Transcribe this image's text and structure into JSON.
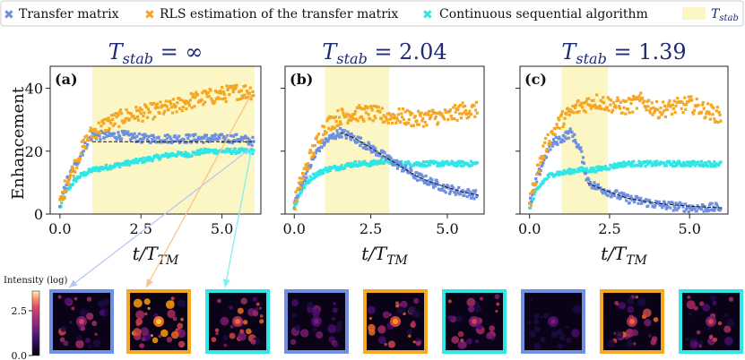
{
  "legend": {
    "items": [
      {
        "label": "Transfer matrix",
        "color": "#6f8fe0",
        "marker": "x-marker-icon"
      },
      {
        "label": "RLS estimation of the transfer matrix",
        "color": "#f5a623",
        "marker": "x-marker-icon"
      },
      {
        "label": "Continuous sequential algorithm",
        "color": "#2ee6e6",
        "marker": "x-marker-icon"
      },
      {
        "label": "T",
        "sub": "stab",
        "color": "#fbf6c4",
        "marker": "shaded-box-icon"
      }
    ]
  },
  "shared": {
    "ylabel": "Enhancement",
    "xlabel_main": "t/T",
    "xlabel_sub": "TM",
    "title_prefix": "T",
    "title_sub": "stab",
    "title_eq": "= ",
    "title_color": "#1d2b7a",
    "colorbar_label": "Intensity (log)",
    "colorbar_ticks": [
      {
        "value": 0.0,
        "label": "0.0"
      },
      {
        "value": 2.5,
        "label": "2.5"
      }
    ],
    "colorbar_range": [
      0.0,
      3.6
    ]
  },
  "chart_data": [
    {
      "type": "line",
      "panel_label": "(a)",
      "title_value": "∞",
      "xlim": [
        -0.3,
        6.2
      ],
      "ylim": [
        0,
        47
      ],
      "xticks": [
        0.0,
        2.5,
        5.0
      ],
      "xtick_labels": [
        "0.0",
        "2.5",
        "5.0"
      ],
      "yticks": [
        0,
        20,
        40
      ],
      "ytick_labels": [
        "0",
        "20",
        "40"
      ],
      "shade": [
        1.0,
        6.0
      ],
      "series": [
        {
          "key": "transfer",
          "x": [
            0.0,
            0.2,
            0.4,
            0.6,
            0.8,
            1.0,
            1.5,
            2.0,
            2.5,
            3.0,
            3.5,
            4.0,
            4.5,
            5.0,
            5.5,
            6.0
          ],
          "y": [
            3,
            10,
            14,
            18,
            22,
            25,
            25,
            25,
            24,
            24,
            24,
            24,
            24,
            24,
            24,
            23
          ]
        },
        {
          "key": "rls",
          "x": [
            0.0,
            0.2,
            0.4,
            0.6,
            0.8,
            1.0,
            1.5,
            2.0,
            2.5,
            3.0,
            3.5,
            4.0,
            4.5,
            5.0,
            5.5,
            6.0
          ],
          "y": [
            3,
            10,
            14,
            19,
            23,
            26,
            29,
            31,
            32,
            33,
            34,
            36,
            37,
            38,
            39,
            39
          ]
        },
        {
          "key": "continuous",
          "x": [
            0.0,
            0.2,
            0.4,
            0.6,
            0.8,
            1.0,
            1.5,
            2.0,
            2.5,
            3.0,
            3.5,
            4.0,
            4.5,
            5.0,
            5.5,
            6.0
          ],
          "y": [
            2,
            7,
            10,
            12,
            13,
            14,
            15,
            16,
            17,
            18,
            19,
            19,
            20,
            20,
            20,
            20
          ]
        },
        {
          "key": "fit",
          "x": [
            1.0,
            1.5,
            2.0,
            2.5,
            3.0,
            3.5,
            4.0,
            4.5,
            5.0,
            5.5,
            6.0
          ],
          "y": [
            23,
            23,
            23,
            23,
            23,
            23,
            23,
            23,
            23,
            23,
            23
          ]
        }
      ]
    },
    {
      "type": "line",
      "panel_label": "(b)",
      "title_value": "2.04",
      "xlim": [
        -0.3,
        6.2
      ],
      "ylim": [
        0,
        47
      ],
      "xticks": [
        0.0,
        2.5,
        5.0
      ],
      "xtick_labels": [
        "0.0",
        "2.5",
        "5.0"
      ],
      "yticks": [
        0,
        20,
        40
      ],
      "ytick_labels": [
        "",
        "",
        ""
      ],
      "shade": [
        1.0,
        3.1
      ],
      "series": [
        {
          "key": "transfer",
          "x": [
            0.0,
            0.2,
            0.4,
            0.6,
            0.8,
            1.0,
            1.5,
            2.0,
            2.5,
            3.0,
            3.5,
            4.0,
            4.5,
            5.0,
            5.5,
            6.0
          ],
          "y": [
            3,
            9,
            13,
            17,
            21,
            23,
            26,
            24,
            21,
            18,
            15,
            12,
            10,
            8,
            7,
            6
          ]
        },
        {
          "key": "rls",
          "x": [
            0.0,
            0.2,
            0.4,
            0.6,
            0.8,
            1.0,
            1.5,
            2.0,
            2.5,
            3.0,
            3.5,
            4.0,
            4.5,
            5.0,
            5.5,
            6.0
          ],
          "y": [
            3,
            10,
            15,
            20,
            24,
            28,
            31,
            32,
            32,
            31,
            31,
            30,
            31,
            31,
            33,
            33
          ]
        },
        {
          "key": "continuous",
          "x": [
            0.0,
            0.2,
            0.4,
            0.6,
            0.8,
            1.0,
            1.5,
            2.0,
            2.5,
            3.0,
            3.5,
            4.0,
            4.5,
            5.0,
            5.5,
            6.0
          ],
          "y": [
            2,
            7,
            10,
            12,
            13,
            14,
            15,
            16,
            16,
            17,
            16,
            16,
            16,
            16,
            16,
            16
          ]
        },
        {
          "key": "fit",
          "x": [
            1.5,
            2.0,
            2.5,
            3.0,
            3.5,
            4.0,
            4.5,
            5.0,
            5.5,
            6.0
          ],
          "y": [
            26,
            24,
            21,
            18,
            15,
            12,
            10,
            8.5,
            7,
            6
          ]
        }
      ]
    },
    {
      "type": "line",
      "panel_label": "(c)",
      "title_value": "1.39",
      "xlim": [
        -0.3,
        6.2
      ],
      "ylim": [
        0,
        47
      ],
      "xticks": [
        0.0,
        2.5,
        5.0
      ],
      "xtick_labels": [
        "0.0",
        "2.5",
        "5.0"
      ],
      "yticks": [
        0,
        20,
        40
      ],
      "ytick_labels": [
        "",
        "",
        ""
      ],
      "shade": [
        1.0,
        2.45
      ],
      "series": [
        {
          "key": "transfer",
          "x": [
            0.0,
            0.2,
            0.4,
            0.6,
            0.8,
            1.0,
            1.3,
            1.6,
            1.8,
            2.0,
            2.5,
            3.0,
            3.5,
            4.0,
            4.5,
            5.0,
            5.5,
            6.0
          ],
          "y": [
            3,
            10,
            16,
            21,
            23,
            24,
            26,
            20,
            11,
            9,
            7,
            5,
            4,
            3,
            2.5,
            2,
            2,
            2
          ]
        },
        {
          "key": "rls",
          "x": [
            0.0,
            0.2,
            0.4,
            0.6,
            0.8,
            1.0,
            1.5,
            2.0,
            2.5,
            3.0,
            3.5,
            4.0,
            4.5,
            5.0,
            5.5,
            6.0
          ],
          "y": [
            3,
            12,
            19,
            24,
            27,
            30,
            34,
            36,
            35,
            34,
            36,
            33,
            34,
            35,
            33,
            31
          ]
        },
        {
          "key": "continuous",
          "x": [
            0.0,
            0.2,
            0.4,
            0.6,
            0.8,
            1.0,
            1.5,
            2.0,
            2.5,
            3.0,
            3.5,
            4.0,
            4.5,
            5.0,
            5.5,
            6.0
          ],
          "y": [
            2,
            7,
            10,
            12,
            13,
            13,
            14,
            14,
            15,
            16,
            16,
            16,
            16,
            16,
            16,
            16
          ]
        },
        {
          "key": "fit",
          "x": [
            1.8,
            2.0,
            2.5,
            3.0,
            3.5,
            4.0,
            4.5,
            5.0,
            5.5,
            6.0
          ],
          "y": [
            10,
            9,
            7,
            5.2,
            4.2,
            3.4,
            2.9,
            2.5,
            2.2,
            2
          ]
        }
      ]
    }
  ],
  "thumbnails": [
    {
      "border": "#6f8fe0",
      "level": 0.55,
      "arrow_color": "#b8c8f0",
      "arrow_from": [
        5.9,
        21
      ]
    },
    {
      "border": "#f5a623",
      "level": 0.9,
      "arrow_color": "#f7c48a",
      "arrow_from": [
        5.9,
        38
      ]
    },
    {
      "border": "#2ee6e6",
      "level": 0.65,
      "arrow_color": "#7ff0f0",
      "arrow_from": [
        5.9,
        20
      ]
    },
    {
      "border": "#6f8fe0",
      "level": 0.35
    },
    {
      "border": "#f5a623",
      "level": 0.75
    },
    {
      "border": "#2ee6e6",
      "level": 0.6
    },
    {
      "border": "#6f8fe0",
      "level": 0.15
    },
    {
      "border": "#f5a623",
      "level": 0.7
    },
    {
      "border": "#2ee6e6",
      "level": 0.55
    }
  ],
  "colors": {
    "transfer": "#6f8fe0",
    "rls": "#f5a623",
    "continuous": "#2ee6e6",
    "fit": "#1a1a1a",
    "shade": "#fbf6c4"
  }
}
